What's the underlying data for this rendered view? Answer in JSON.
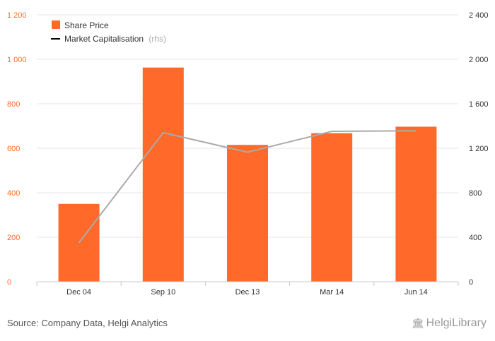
{
  "chart_data": {
    "type": "bar",
    "categories": [
      "Dec 04",
      "Sep 10",
      "Dec 13",
      "Mar 14",
      "Jun 14"
    ],
    "series": [
      {
        "name": "Share Price",
        "type": "bar",
        "axis": "left",
        "values": [
          350,
          963,
          615,
          668,
          697
        ]
      },
      {
        "name": "Market Capitalisation",
        "type": "line",
        "axis": "right",
        "values": [
          350,
          1340,
          1165,
          1352,
          1357
        ]
      }
    ],
    "left_axis": {
      "ticks": [
        "0",
        "200",
        "400",
        "600",
        "800",
        "1 000",
        "1 200"
      ],
      "ylim": [
        0,
        1200
      ]
    },
    "right_axis": {
      "ticks": [
        "0",
        "400",
        "800",
        "1 200",
        "1 600",
        "2 000",
        "2 400"
      ],
      "ylim": [
        0,
        2400
      ]
    },
    "legend": {
      "position": "top-left",
      "bar_label": "Share Price",
      "line_label": "Market Capitalisation",
      "line_suffix": "(rhs)"
    },
    "grid": true
  },
  "footer": {
    "source": "Source: Company Data, Helgi Analytics",
    "logo": "HelgiLibrary"
  },
  "colors": {
    "bar": "#ff6a2b",
    "line": "#aaaaaa",
    "grid": "#e6e6e6"
  }
}
